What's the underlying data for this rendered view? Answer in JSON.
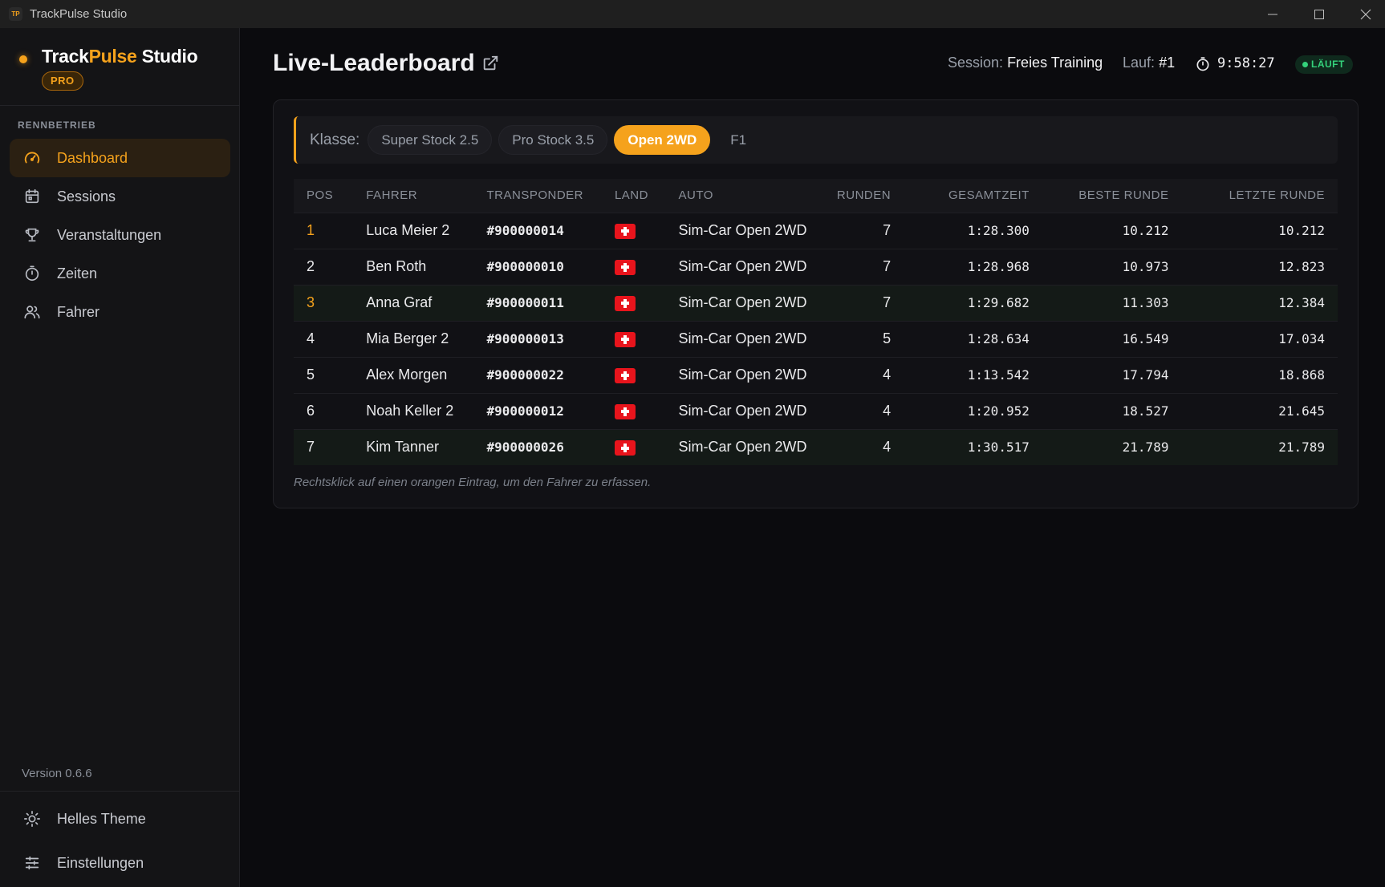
{
  "window": {
    "title": "TrackPulse Studio",
    "icon_text": "TP",
    "controls": [
      "minimize-icon",
      "maximize-icon",
      "close-icon"
    ]
  },
  "sidebar": {
    "brand_part1": "Track",
    "brand_part2": "Pulse",
    "brand_part3": " Studio",
    "badge": "PRO",
    "section_label": "RENNBETRIEB",
    "items": [
      {
        "label": "Dashboard",
        "icon": "gauge-icon",
        "active": true
      },
      {
        "label": "Sessions",
        "icon": "calendar-icon",
        "active": false
      },
      {
        "label": "Veranstaltungen",
        "icon": "trophy-icon",
        "active": false
      },
      {
        "label": "Zeiten",
        "icon": "stopwatch-icon",
        "active": false
      },
      {
        "label": "Fahrer",
        "icon": "users-icon",
        "active": false
      }
    ],
    "version": "Version 0.6.6",
    "bottom": [
      {
        "label": "Helles Theme",
        "icon": "sun-icon"
      },
      {
        "label": "Einstellungen",
        "icon": "sliders-icon"
      }
    ]
  },
  "header": {
    "title": "Live-Leaderboard",
    "session_label": "Session:",
    "session_value": "Freies Training",
    "run_label": "Lauf:",
    "run_value": "#1",
    "timer": "9:58:27",
    "status": "LÄUFT"
  },
  "classes": {
    "label": "Klasse:",
    "options": [
      "Super Stock 2.5",
      "Pro Stock 3.5",
      "Open 2WD",
      "F1"
    ],
    "selected": "Open 2WD"
  },
  "table": {
    "columns": [
      "POS",
      "FAHRER",
      "TRANSPONDER",
      "LAND",
      "AUTO",
      "RUNDEN",
      "GESAMTZEIT",
      "BESTE RUNDE",
      "LETZTE RUNDE"
    ],
    "rows": [
      {
        "pos": "1",
        "driver": "Luca Meier 2",
        "transponder": "#900000014",
        "country": "CH",
        "car": "Sim-Car Open 2WD",
        "laps": "7",
        "total": "1:28.300",
        "best": "10.212",
        "last": "10.212",
        "pos_orange": true,
        "highlight": false
      },
      {
        "pos": "2",
        "driver": "Ben Roth",
        "transponder": "#900000010",
        "country": "CH",
        "car": "Sim-Car Open 2WD",
        "laps": "7",
        "total": "1:28.968",
        "best": "10.973",
        "last": "12.823",
        "pos_orange": false,
        "highlight": false
      },
      {
        "pos": "3",
        "driver": "Anna Graf",
        "transponder": "#900000011",
        "country": "CH",
        "car": "Sim-Car Open 2WD",
        "laps": "7",
        "total": "1:29.682",
        "best": "11.303",
        "last": "12.384",
        "pos_orange": true,
        "highlight": true
      },
      {
        "pos": "4",
        "driver": "Mia Berger 2",
        "transponder": "#900000013",
        "country": "CH",
        "car": "Sim-Car Open 2WD",
        "laps": "5",
        "total": "1:28.634",
        "best": "16.549",
        "last": "17.034",
        "pos_orange": false,
        "highlight": false
      },
      {
        "pos": "5",
        "driver": "Alex Morgen",
        "transponder": "#900000022",
        "country": "CH",
        "car": "Sim-Car Open 2WD",
        "laps": "4",
        "total": "1:13.542",
        "best": "17.794",
        "last": "18.868",
        "pos_orange": false,
        "highlight": false
      },
      {
        "pos": "6",
        "driver": "Noah Keller 2",
        "transponder": "#900000012",
        "country": "CH",
        "car": "Sim-Car Open 2WD",
        "laps": "4",
        "total": "1:20.952",
        "best": "18.527",
        "last": "21.645",
        "pos_orange": false,
        "highlight": false
      },
      {
        "pos": "7",
        "driver": "Kim Tanner",
        "transponder": "#900000026",
        "country": "CH",
        "car": "Sim-Car Open 2WD",
        "laps": "4",
        "total": "1:30.517",
        "best": "21.789",
        "last": "21.789",
        "pos_orange": false,
        "highlight": true
      }
    ]
  },
  "hint": "Rechtsklick auf einen orangen Eintrag, um den Fahrer zu erfassen.",
  "colors": {
    "accent": "#f5a21c",
    "status_green": "#34d27b",
    "background": "#0b0b0e",
    "sidebar": "#141416",
    "flag_red": "#e8141c"
  }
}
